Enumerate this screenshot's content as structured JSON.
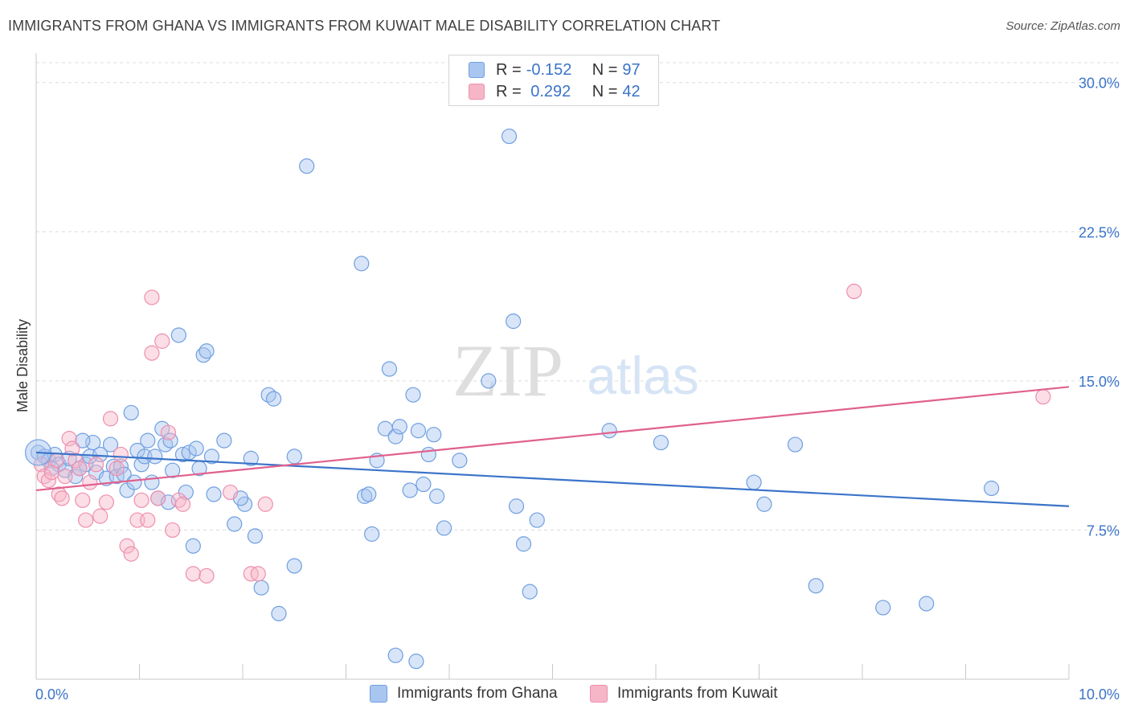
{
  "header": {
    "title": "IMMIGRANTS FROM GHANA VS IMMIGRANTS FROM KUWAIT MALE DISABILITY CORRELATION CHART",
    "source": "Source: ZipAtlas.com"
  },
  "watermark": {
    "zip": "ZIP",
    "atlas": "atlas"
  },
  "legend": {
    "rows": [
      {
        "r_label": "R = ",
        "r_value": "-0.152",
        "n_label": "N = ",
        "n_value": "97",
        "color": "#a9c6f0"
      },
      {
        "r_label": "R = ",
        "r_value": " 0.292",
        "n_label": "N = ",
        "n_value": "42",
        "color": "#f6b6c8"
      }
    ]
  },
  "chart_data": {
    "type": "scatter",
    "title": "IMMIGRANTS FROM GHANA VS IMMIGRANTS FROM KUWAIT MALE DISABILITY CORRELATION CHART",
    "xlabel": "",
    "ylabel": "Male Disability",
    "xlim": [
      0,
      10
    ],
    "ylim": [
      0,
      31
    ],
    "x_tick_labels": [
      "0.0%",
      "10.0%"
    ],
    "y_ticks": [
      7.5,
      15.0,
      22.5,
      30.0
    ],
    "y_tick_labels": [
      "7.5%",
      "15.0%",
      "22.5%",
      "30.0%"
    ],
    "grid": true,
    "legend_position": "top-center",
    "series": [
      {
        "name": "Immigrants from Ghana",
        "color": "#6f9fe0",
        "fill": "#a9c6f0",
        "trend": {
          "x": [
            0,
            10
          ],
          "y": [
            11.4,
            8.7
          ],
          "color": "#3b74c9"
        },
        "points": [
          [
            0.02,
            11.4
          ],
          [
            0.08,
            11.2
          ],
          [
            0.12,
            11.0
          ],
          [
            0.18,
            11.3
          ],
          [
            0.22,
            10.8
          ],
          [
            0.28,
            10.5
          ],
          [
            0.32,
            11.1
          ],
          [
            0.38,
            10.2
          ],
          [
            0.42,
            10.6
          ],
          [
            0.48,
            10.8
          ],
          [
            0.52,
            11.2
          ],
          [
            0.55,
            11.9
          ],
          [
            0.58,
            10.4
          ],
          [
            0.62,
            11.3
          ],
          [
            0.68,
            10.1
          ],
          [
            0.72,
            11.8
          ],
          [
            0.75,
            10.7
          ],
          [
            0.78,
            10.2
          ],
          [
            0.82,
            10.7
          ],
          [
            0.85,
            10.3
          ],
          [
            0.88,
            9.5
          ],
          [
            0.92,
            13.4
          ],
          [
            0.95,
            9.9
          ],
          [
            0.98,
            11.5
          ],
          [
            1.02,
            10.8
          ],
          [
            1.05,
            11.2
          ],
          [
            1.08,
            12.0
          ],
          [
            1.12,
            9.9
          ],
          [
            1.15,
            11.2
          ],
          [
            1.18,
            9.1
          ],
          [
            1.22,
            12.6
          ],
          [
            1.25,
            11.8
          ],
          [
            1.28,
            8.9
          ],
          [
            1.32,
            10.5
          ],
          [
            1.38,
            17.3
          ],
          [
            1.42,
            11.3
          ],
          [
            1.45,
            9.4
          ],
          [
            1.48,
            11.4
          ],
          [
            1.52,
            6.7
          ],
          [
            1.55,
            11.6
          ],
          [
            1.58,
            10.6
          ],
          [
            1.62,
            16.3
          ],
          [
            1.65,
            16.5
          ],
          [
            1.72,
            9.3
          ],
          [
            1.7,
            11.2
          ],
          [
            1.82,
            12.0
          ],
          [
            1.92,
            7.8
          ],
          [
            2.02,
            8.8
          ],
          [
            2.08,
            11.1
          ],
          [
            2.12,
            7.2
          ],
          [
            2.18,
            4.6
          ],
          [
            2.25,
            14.3
          ],
          [
            2.3,
            14.1
          ],
          [
            2.62,
            25.8
          ],
          [
            3.15,
            20.9
          ],
          [
            3.25,
            7.3
          ],
          [
            3.3,
            11.0
          ],
          [
            3.38,
            12.6
          ],
          [
            3.42,
            15.6
          ],
          [
            3.48,
            12.2
          ],
          [
            3.52,
            12.7
          ],
          [
            3.65,
            14.3
          ],
          [
            3.7,
            12.5
          ],
          [
            3.75,
            9.8
          ],
          [
            3.8,
            11.3
          ],
          [
            3.85,
            12.3
          ],
          [
            3.95,
            7.6
          ],
          [
            4.1,
            11.0
          ],
          [
            4.38,
            15.0
          ],
          [
            4.58,
            27.3
          ],
          [
            4.62,
            18.0
          ],
          [
            4.72,
            6.8
          ],
          [
            4.78,
            4.4
          ],
          [
            4.85,
            8.0
          ],
          [
            4.65,
            8.7
          ],
          [
            3.62,
            9.5
          ],
          [
            3.88,
            9.2
          ],
          [
            3.18,
            9.2
          ],
          [
            3.22,
            9.3
          ],
          [
            2.5,
            5.7
          ],
          [
            2.35,
            3.3
          ],
          [
            3.48,
            1.2
          ],
          [
            3.68,
            0.9
          ],
          [
            5.55,
            12.5
          ],
          [
            6.05,
            11.9
          ],
          [
            6.95,
            9.9
          ],
          [
            7.05,
            8.8
          ],
          [
            7.35,
            11.8
          ],
          [
            7.55,
            4.7
          ],
          [
            8.2,
            3.6
          ],
          [
            8.62,
            3.8
          ],
          [
            9.25,
            9.6
          ],
          [
            0.45,
            12.0
          ],
          [
            0.15,
            10.6
          ],
          [
            1.98,
            9.1
          ],
          [
            2.5,
            11.2
          ],
          [
            1.3,
            12.0
          ]
        ]
      },
      {
        "name": "Immigrants from Kuwait",
        "color": "#ee8fae",
        "fill": "#f6b6c8",
        "trend": {
          "x": [
            0,
            10
          ],
          "y": [
            9.5,
            14.7
          ],
          "color": "#e0608e"
        },
        "points": [
          [
            0.05,
            10.8
          ],
          [
            0.08,
            10.2
          ],
          [
            0.12,
            10.0
          ],
          [
            0.15,
            10.4
          ],
          [
            0.2,
            11.0
          ],
          [
            0.22,
            9.3
          ],
          [
            0.25,
            9.1
          ],
          [
            0.28,
            10.2
          ],
          [
            0.32,
            12.1
          ],
          [
            0.35,
            11.6
          ],
          [
            0.38,
            11.0
          ],
          [
            0.42,
            10.6
          ],
          [
            0.45,
            9.0
          ],
          [
            0.48,
            8.0
          ],
          [
            0.52,
            9.9
          ],
          [
            0.58,
            10.8
          ],
          [
            0.62,
            8.2
          ],
          [
            0.68,
            8.9
          ],
          [
            0.72,
            13.1
          ],
          [
            0.78,
            10.6
          ],
          [
            0.82,
            11.3
          ],
          [
            0.88,
            6.7
          ],
          [
            0.92,
            6.3
          ],
          [
            0.98,
            8.0
          ],
          [
            1.02,
            9.0
          ],
          [
            1.08,
            8.0
          ],
          [
            1.12,
            16.4
          ],
          [
            1.18,
            9.1
          ],
          [
            1.22,
            17.0
          ],
          [
            1.28,
            12.4
          ],
          [
            1.32,
            7.5
          ],
          [
            1.38,
            9.0
          ],
          [
            1.42,
            8.8
          ],
          [
            1.52,
            5.3
          ],
          [
            1.65,
            5.2
          ],
          [
            1.12,
            19.2
          ],
          [
            1.88,
            9.4
          ],
          [
            2.08,
            5.3
          ],
          [
            2.15,
            5.3
          ],
          [
            2.22,
            8.8
          ],
          [
            7.92,
            19.5
          ],
          [
            9.75,
            14.2
          ]
        ]
      }
    ]
  },
  "bottom_legend": [
    {
      "label": "Immigrants from Ghana",
      "color": "#a9c6f0"
    },
    {
      "label": "Immigrants from Kuwait",
      "color": "#f6b6c8"
    }
  ]
}
